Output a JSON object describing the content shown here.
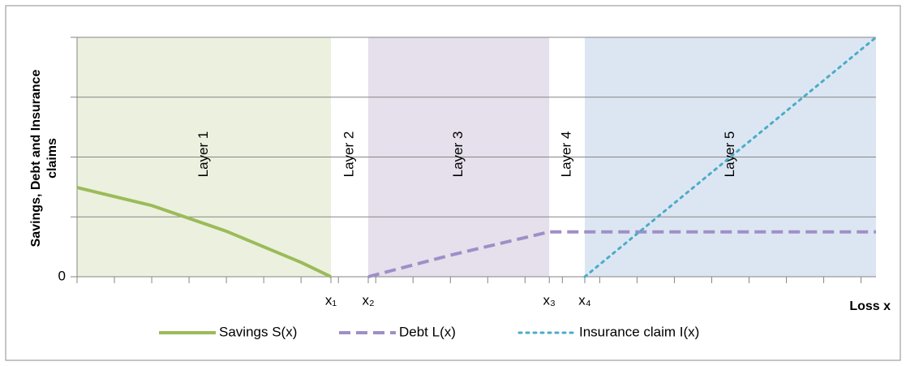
{
  "chart_data": {
    "type": "line",
    "x_label": "Loss x",
    "y_label": "Savings, Debt and Insurance claims",
    "xlim": [
      0,
      21.4
    ],
    "ylim": [
      0,
      4
    ],
    "xticks": [
      {
        "value": 6.8,
        "label": "x₁"
      },
      {
        "value": 7.8,
        "label": "x₂"
      },
      {
        "value": 12.65,
        "label": "x₃"
      },
      {
        "value": 13.6,
        "label": "x₄"
      }
    ],
    "minor_xticks": [
      0,
      1,
      2,
      3,
      4,
      5,
      6,
      7,
      8,
      9,
      10,
      11,
      12,
      13,
      14,
      15,
      16,
      17,
      18,
      19,
      20,
      21
    ],
    "yticks": [
      0
    ],
    "grid_lines": [
      1,
      2,
      3,
      4
    ],
    "layers": [
      {
        "name": "Layer 1",
        "start": 0,
        "end": 6.8,
        "color": "#ebf1de"
      },
      {
        "name": "Layer 2",
        "start": 6.8,
        "end": 7.8,
        "color": "#ffffff"
      },
      {
        "name": "Layer 3",
        "start": 7.8,
        "end": 12.65,
        "color": "#e5e0ec"
      },
      {
        "name": "Layer 4",
        "start": 12.65,
        "end": 13.6,
        "color": "#ffffff"
      },
      {
        "name": "Layer 5",
        "start": 13.6,
        "end": 21.4,
        "color": "#dce6f2"
      }
    ],
    "series": [
      {
        "name": "Savings S(x)",
        "color": "#9bbb59",
        "style": "solid",
        "x": [
          0,
          2,
          4,
          6,
          6.8
        ],
        "values": [
          1.49,
          1.19,
          0.76,
          0.24,
          0
        ]
      },
      {
        "name": "Debt L(x)",
        "color": "#9f8fc6",
        "style": "dashed",
        "x": [
          7.8,
          10,
          12.65,
          21.4
        ],
        "values": [
          0,
          0.36,
          0.75,
          0.75
        ]
      },
      {
        "name": "Insurance claim I(x)",
        "color": "#4bacc6",
        "style": "dotted",
        "x": [
          13.6,
          21.4
        ],
        "values": [
          0,
          4
        ]
      }
    ]
  }
}
